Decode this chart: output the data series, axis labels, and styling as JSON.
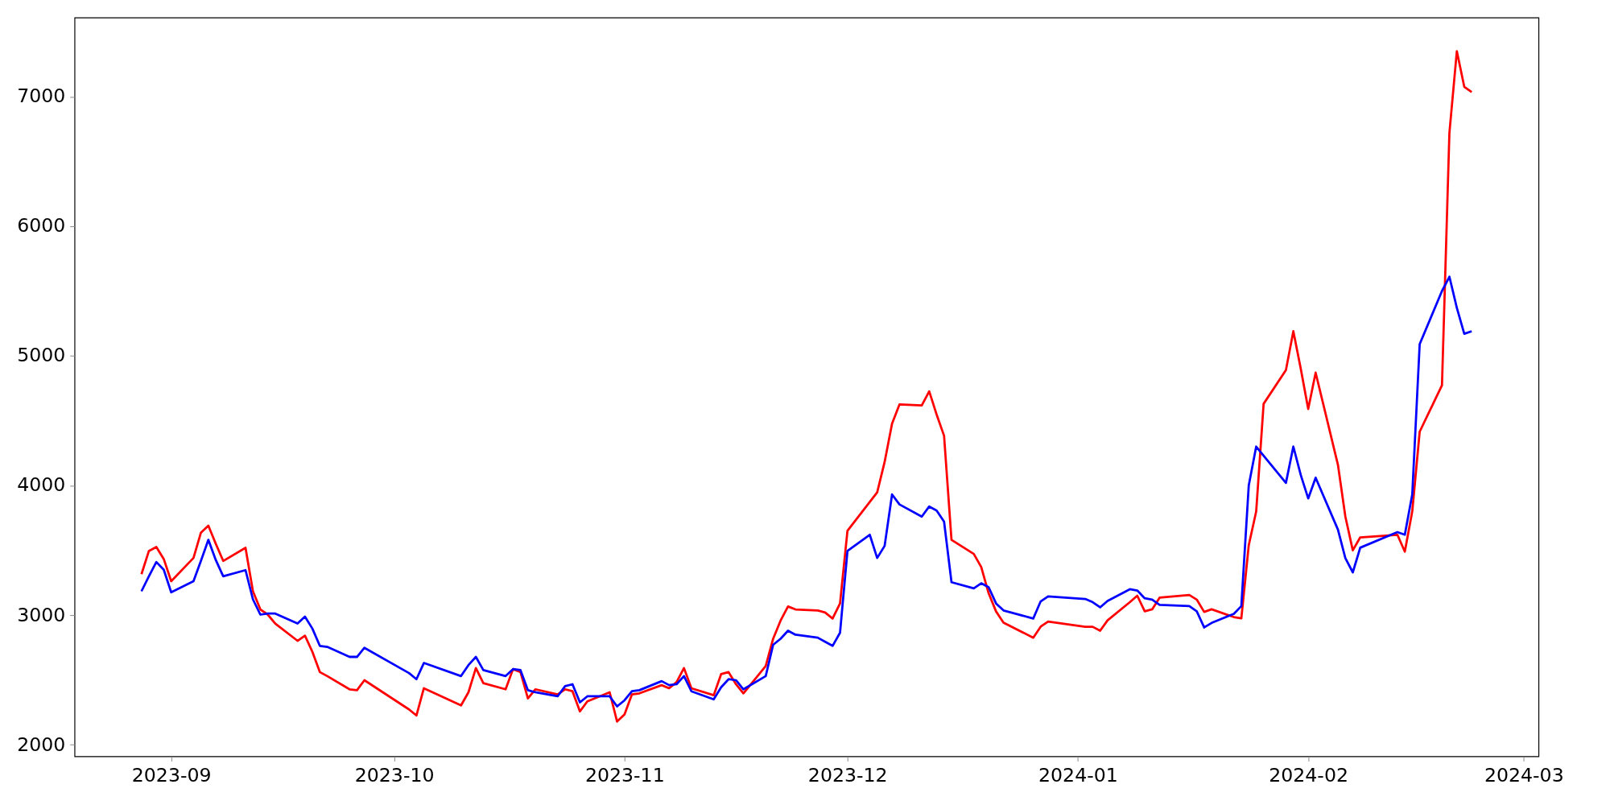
{
  "chart_data": {
    "type": "line",
    "xlim": [
      "2023-08-19",
      "2024-03-03"
    ],
    "ylim": [
      1911,
      7609
    ],
    "xticks": [
      "2023-09",
      "2023-10",
      "2023-11",
      "2023-12",
      "2024-01",
      "2024-02",
      "2024-03"
    ],
    "yticks": [
      2000,
      3000,
      4000,
      5000,
      6000,
      7000
    ],
    "grid": false,
    "legend": false,
    "line_style": "solid",
    "marker": "none",
    "series": [
      {
        "color": "#ff0000",
        "x": [
          "2023-08-28",
          "2023-08-29",
          "2023-08-30",
          "2023-08-31",
          "2023-09-01",
          "2023-09-04",
          "2023-09-05",
          "2023-09-06",
          "2023-09-07",
          "2023-09-08",
          "2023-09-11",
          "2023-09-12",
          "2023-09-13",
          "2023-09-14",
          "2023-09-15",
          "2023-09-18",
          "2023-09-19",
          "2023-09-20",
          "2023-09-21",
          "2023-09-22",
          "2023-09-25",
          "2023-09-26",
          "2023-09-27",
          "2023-10-03",
          "2023-10-04",
          "2023-10-05",
          "2023-10-10",
          "2023-10-11",
          "2023-10-12",
          "2023-10-13",
          "2023-10-16",
          "2023-10-17",
          "2023-10-18",
          "2023-10-19",
          "2023-10-20",
          "2023-10-23",
          "2023-10-24",
          "2023-10-25",
          "2023-10-26",
          "2023-10-27",
          "2023-10-30",
          "2023-10-31",
          "2023-11-01",
          "2023-11-02",
          "2023-11-03",
          "2023-11-06",
          "2023-11-07",
          "2023-11-08",
          "2023-11-09",
          "2023-11-10",
          "2023-11-13",
          "2023-11-14",
          "2023-11-15",
          "2023-11-16",
          "2023-11-17",
          "2023-11-20",
          "2023-11-21",
          "2023-11-22",
          "2023-11-23",
          "2023-11-24",
          "2023-11-27",
          "2023-11-28",
          "2023-11-29",
          "2023-11-30",
          "2023-12-01",
          "2023-12-05",
          "2023-12-06",
          "2023-12-07",
          "2023-12-08",
          "2023-12-11",
          "2023-12-12",
          "2023-12-13",
          "2023-12-14",
          "2023-12-15",
          "2023-12-18",
          "2023-12-19",
          "2023-12-20",
          "2023-12-21",
          "2023-12-22",
          "2023-12-26",
          "2023-12-27",
          "2023-12-28",
          "2024-01-02",
          "2024-01-03",
          "2024-01-04",
          "2024-01-05",
          "2024-01-08",
          "2024-01-09",
          "2024-01-10",
          "2024-01-11",
          "2024-01-12",
          "2024-01-16",
          "2024-01-17",
          "2024-01-18",
          "2024-01-19",
          "2024-01-22",
          "2024-01-23",
          "2024-01-24",
          "2024-01-25",
          "2024-01-26",
          "2024-01-29",
          "2024-01-30",
          "2024-01-31",
          "2024-02-01",
          "2024-02-02",
          "2024-02-05",
          "2024-02-06",
          "2024-02-07",
          "2024-02-08",
          "2024-02-13",
          "2024-02-14",
          "2024-02-15",
          "2024-02-16",
          "2024-02-19",
          "2024-02-20",
          "2024-02-21",
          "2024-02-22",
          "2024-02-23"
        ],
        "values": [
          3316,
          3495,
          3526,
          3433,
          3262,
          3441,
          3636,
          3690,
          3550,
          3418,
          3519,
          3184,
          3044,
          3004,
          2935,
          2802,
          2842,
          2717,
          2561,
          2530,
          2428,
          2421,
          2498,
          2273,
          2226,
          2436,
          2304,
          2405,
          2592,
          2475,
          2428,
          2584,
          2561,
          2358,
          2428,
          2389,
          2428,
          2413,
          2257,
          2335,
          2405,
          2179,
          2234,
          2389,
          2397,
          2460,
          2436,
          2483,
          2592,
          2436,
          2382,
          2545,
          2561,
          2467,
          2397,
          2607,
          2818,
          2958,
          3067,
          3044,
          3036,
          3020,
          2974,
          3090,
          3650,
          3947,
          4181,
          4477,
          4625,
          4617,
          4726,
          4547,
          4383,
          3581,
          3472,
          3371,
          3168,
          3028,
          2942,
          2826,
          2911,
          2950,
          2910,
          2910,
          2880,
          2960,
          3100,
          3150,
          3030,
          3045,
          3135,
          3155,
          3120,
          3025,
          3045,
          2985,
          2975,
          3540,
          3800,
          4630,
          4890,
          5190,
          4900,
          4590,
          4870,
          4160,
          3760,
          3500,
          3600,
          3620,
          3490,
          3800,
          4415,
          4773,
          6720,
          7350,
          7075,
          7035
        ]
      },
      {
        "color": "#0000ff",
        "x": [
          "2023-08-28",
          "2023-08-29",
          "2023-08-30",
          "2023-08-31",
          "2023-09-01",
          "2023-09-04",
          "2023-09-05",
          "2023-09-06",
          "2023-09-07",
          "2023-09-08",
          "2023-09-11",
          "2023-09-12",
          "2023-09-13",
          "2023-09-14",
          "2023-09-15",
          "2023-09-18",
          "2023-09-19",
          "2023-09-20",
          "2023-09-21",
          "2023-09-22",
          "2023-09-25",
          "2023-09-26",
          "2023-09-27",
          "2023-10-03",
          "2023-10-04",
          "2023-10-05",
          "2023-10-10",
          "2023-10-11",
          "2023-10-12",
          "2023-10-13",
          "2023-10-16",
          "2023-10-17",
          "2023-10-18",
          "2023-10-19",
          "2023-10-20",
          "2023-10-23",
          "2023-10-24",
          "2023-10-25",
          "2023-10-26",
          "2023-10-27",
          "2023-10-30",
          "2023-10-31",
          "2023-11-01",
          "2023-11-02",
          "2023-11-03",
          "2023-11-06",
          "2023-11-07",
          "2023-11-08",
          "2023-11-09",
          "2023-11-10",
          "2023-11-13",
          "2023-11-14",
          "2023-11-15",
          "2023-11-16",
          "2023-11-17",
          "2023-11-20",
          "2023-11-21",
          "2023-11-22",
          "2023-11-23",
          "2023-11-24",
          "2023-11-27",
          "2023-11-28",
          "2023-11-29",
          "2023-11-30",
          "2023-12-01",
          "2023-12-04",
          "2023-12-05",
          "2023-12-06",
          "2023-12-07",
          "2023-12-08",
          "2023-12-11",
          "2023-12-12",
          "2023-12-13",
          "2023-12-14",
          "2023-12-15",
          "2023-12-18",
          "2023-12-19",
          "2023-12-20",
          "2023-12-21",
          "2023-12-22",
          "2023-12-26",
          "2023-12-27",
          "2023-12-28",
          "2024-01-02",
          "2024-01-03",
          "2024-01-04",
          "2024-01-05",
          "2024-01-08",
          "2024-01-09",
          "2024-01-10",
          "2024-01-11",
          "2024-01-12",
          "2024-01-16",
          "2024-01-17",
          "2024-01-18",
          "2024-01-19",
          "2024-01-22",
          "2024-01-23",
          "2024-01-24",
          "2024-01-25",
          "2024-01-29",
          "2024-01-30",
          "2024-01-31",
          "2024-02-01",
          "2024-02-02",
          "2024-02-05",
          "2024-02-06",
          "2024-02-07",
          "2024-02-08",
          "2024-02-13",
          "2024-02-14",
          "2024-02-15",
          "2024-02-16",
          "2024-02-19",
          "2024-02-20",
          "2024-02-21",
          "2024-02-22",
          "2024-02-23"
        ],
        "values": [
          3184,
          3300,
          3410,
          3350,
          3176,
          3262,
          3418,
          3581,
          3425,
          3300,
          3347,
          3122,
          3004,
          3012,
          3012,
          2935,
          2989,
          2896,
          2763,
          2755,
          2678,
          2678,
          2748,
          2553,
          2506,
          2631,
          2530,
          2615,
          2678,
          2576,
          2530,
          2584,
          2576,
          2421,
          2405,
          2374,
          2452,
          2467,
          2327,
          2374,
          2374,
          2296,
          2343,
          2413,
          2421,
          2491,
          2460,
          2467,
          2530,
          2413,
          2350,
          2444,
          2506,
          2498,
          2428,
          2530,
          2771,
          2818,
          2880,
          2849,
          2826,
          2794,
          2763,
          2864,
          3495,
          3620,
          3441,
          3534,
          3931,
          3854,
          3760,
          3838,
          3807,
          3721,
          3254,
          3207,
          3246,
          3215,
          3090,
          3036,
          2974,
          3106,
          3145,
          3125,
          3100,
          3060,
          3110,
          3200,
          3190,
          3130,
          3120,
          3080,
          3070,
          3030,
          2905,
          2940,
          3010,
          3070,
          4000,
          4300,
          4020,
          4300,
          4080,
          3900,
          4060,
          3660,
          3440,
          3330,
          3520,
          3640,
          3620,
          3930,
          5090,
          5500,
          5610,
          5370,
          5170,
          5190
        ]
      }
    ]
  }
}
